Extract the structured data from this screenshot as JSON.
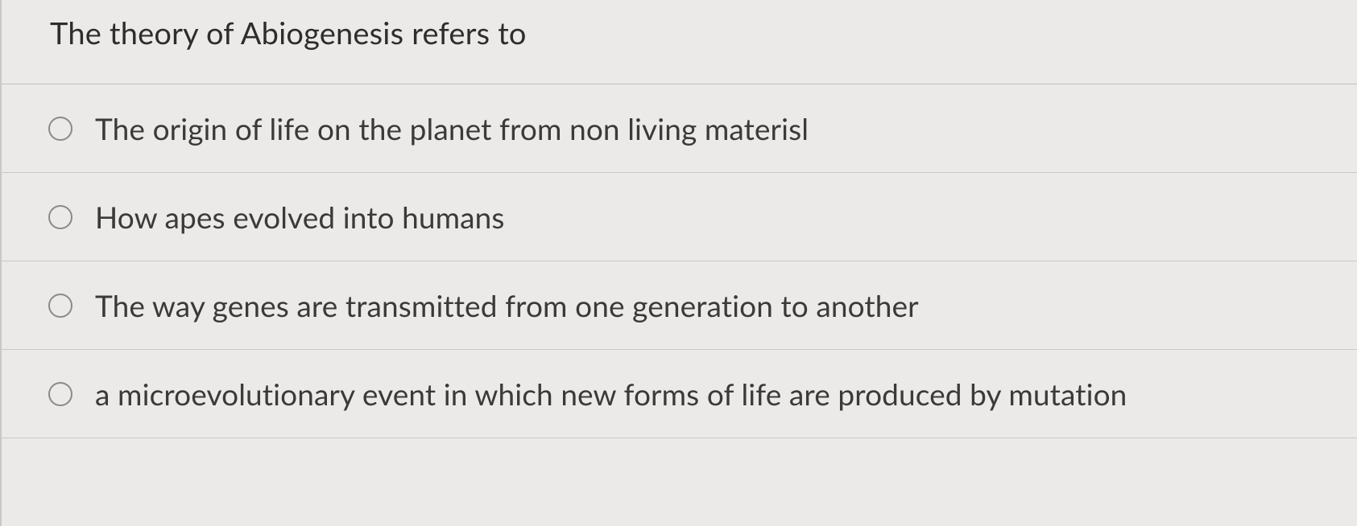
{
  "question": {
    "prompt": "The theory of Abiogenesis refers to",
    "options": [
      {
        "label": "The origin of life on the planet from non living materisl"
      },
      {
        "label": "How apes evolved into humans"
      },
      {
        "label": "The way genes are transmitted from one generation to another"
      },
      {
        "label": "a microevolutionary event in which new forms of life are produced by mutation"
      }
    ]
  },
  "style": {
    "background_color": "#eceae8",
    "border_color": "#c8c8c6",
    "text_color": "#2d2d2d",
    "option_text_color": "#3a3a3a",
    "radio_border_color": "#8a8a88",
    "question_fontsize": 38,
    "option_fontsize": 37
  }
}
